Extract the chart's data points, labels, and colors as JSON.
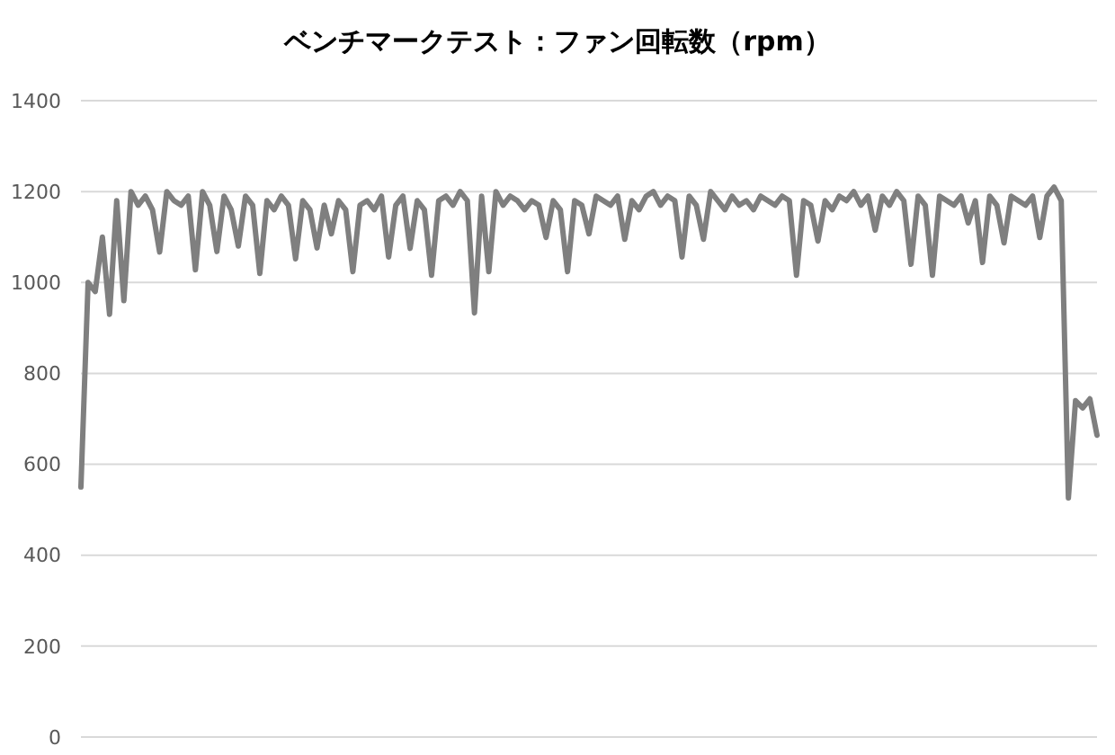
{
  "chart_data": {
    "type": "line",
    "title": "ベンチマークテスト：ファン回転数（rpm）",
    "categories": [
      null,
      null,
      null,
      null,
      null,
      null,
      null,
      null,
      null,
      null,
      null,
      null,
      null,
      null,
      null,
      null,
      null,
      null,
      null,
      null,
      null,
      null,
      null,
      null,
      null,
      null,
      null,
      null,
      null,
      null,
      null,
      null,
      null,
      null,
      null,
      null,
      null,
      null,
      null,
      null,
      null,
      null,
      null,
      null,
      null,
      null,
      null,
      null,
      null,
      null,
      null,
      null,
      null,
      null,
      null,
      null,
      null,
      null,
      null,
      null,
      null,
      null,
      null,
      null,
      null,
      null,
      null,
      null,
      null,
      null,
      null,
      null,
      null,
      null,
      null,
      null,
      null,
      null,
      null,
      null,
      null,
      null,
      null,
      null,
      null,
      null,
      null,
      null,
      null,
      null,
      null,
      null,
      null,
      null,
      null,
      null,
      null,
      null,
      null,
      null,
      null,
      null,
      null,
      null,
      null,
      null,
      null,
      null,
      null,
      null,
      null,
      null,
      null,
      null,
      null,
      null,
      null,
      null,
      null,
      null,
      null,
      null,
      null,
      null,
      null,
      null,
      null,
      null,
      null,
      null,
      null,
      null,
      null,
      null,
      null,
      null,
      null,
      null,
      null,
      null,
      null,
      null,
      null
    ],
    "series": [
      {
        "color": "#7f7f7f",
        "values": [
          550,
          1000,
          980,
          1100,
          930,
          1180,
          960,
          1200,
          1170,
          1190,
          1160,
          1067,
          1200,
          1180,
          1170,
          1190,
          1028,
          1200,
          1170,
          1068,
          1190,
          1160,
          1080,
          1190,
          1170,
          1020,
          1180,
          1160,
          1190,
          1170,
          1052,
          1180,
          1160,
          1076,
          1170,
          1107,
          1180,
          1160,
          1024,
          1170,
          1180,
          1160,
          1190,
          1056,
          1170,
          1190,
          1075,
          1180,
          1160,
          1016,
          1180,
          1190,
          1170,
          1200,
          1180,
          933,
          1190,
          1024,
          1200,
          1170,
          1190,
          1180,
          1160,
          1180,
          1170,
          1099,
          1180,
          1160,
          1024,
          1180,
          1170,
          1107,
          1190,
          1180,
          1170,
          1190,
          1095,
          1180,
          1160,
          1190,
          1200,
          1170,
          1190,
          1180,
          1056,
          1190,
          1170,
          1095,
          1200,
          1180,
          1160,
          1190,
          1170,
          1180,
          1160,
          1190,
          1180,
          1170,
          1190,
          1180,
          1016,
          1180,
          1170,
          1091,
          1180,
          1160,
          1190,
          1180,
          1200,
          1170,
          1190,
          1115,
          1190,
          1170,
          1200,
          1180,
          1040,
          1190,
          1170,
          1016,
          1190,
          1180,
          1170,
          1190,
          1131,
          1180,
          1044,
          1190,
          1170,
          1087,
          1190,
          1180,
          1170,
          1190,
          1099,
          1190,
          1210,
          1180,
          526,
          740,
          724,
          744,
          664
        ]
      }
    ],
    "ylim": [
      0,
      1400
    ],
    "yticks": [
      0,
      200,
      400,
      600,
      800,
      1000,
      1200,
      1400
    ],
    "grid": "y",
    "tick_labels": "y",
    "marker": "none",
    "line_style": "solid"
  }
}
